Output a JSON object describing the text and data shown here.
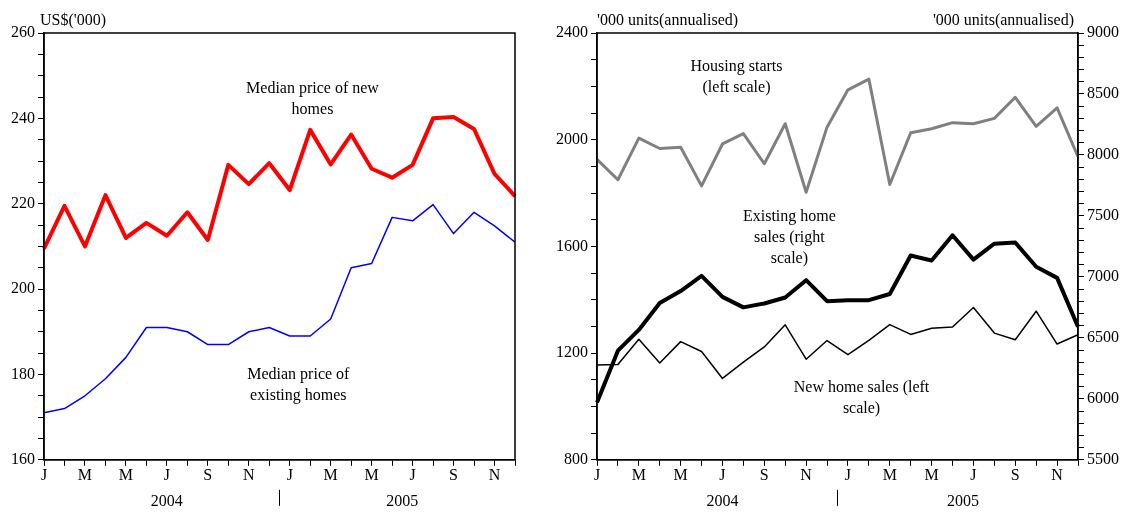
{
  "chart_data": [
    {
      "type": "line",
      "ylabel": "US$('000)",
      "categories": [
        "J",
        null,
        "M",
        null,
        "M",
        null,
        "J",
        null,
        "S",
        null,
        "N",
        null,
        "J",
        null,
        "M",
        null,
        "M",
        null,
        "J",
        null,
        "S",
        null,
        "N",
        null
      ],
      "series": [
        {
          "name": "Median price of new homes",
          "color": "#ff0000",
          "values": [
            209.5,
            219.5,
            210,
            222,
            212,
            215.5,
            212.5,
            218,
            211.5,
            229.1,
            224.6,
            229.5,
            223.2,
            237.3,
            229.2,
            236.2,
            228.2,
            226.1,
            229.1,
            240,
            240.3,
            237.5,
            227,
            221.8
          ]
        },
        {
          "name": "Median price of existing homes",
          "color": "#0000ff",
          "values": [
            171,
            172,
            175,
            179,
            184,
            191,
            191,
            190,
            187,
            187,
            190,
            191,
            189,
            189,
            193,
            205,
            206,
            216.8,
            216,
            219.8,
            213,
            218,
            214.8,
            211
          ]
        }
      ],
      "ylim": [
        160,
        260
      ],
      "yticks": [
        160,
        {
          "value": 165,
          "label": null
        },
        {
          "value": 170,
          "label": null
        },
        {
          "value": 175,
          "label": null
        },
        180,
        {
          "value": 185,
          "label": null
        },
        {
          "value": 190,
          "label": null
        },
        {
          "value": 195,
          "label": null
        },
        200,
        {
          "value": 205,
          "label": null
        },
        {
          "value": 210,
          "label": null
        },
        {
          "value": 215,
          "label": null
        },
        220,
        {
          "value": 225,
          "label": null
        },
        {
          "value": 230,
          "label": null
        },
        {
          "value": 235,
          "label": null
        },
        240,
        {
          "value": 245,
          "label": null
        },
        {
          "value": 250,
          "label": null
        },
        {
          "value": 255,
          "label": null
        },
        260
      ],
      "annotations": [
        "2004",
        "2005"
      ],
      "grid": false,
      "legend": false,
      "marker": "none",
      "line_style": "solid"
    },
    {
      "type": "line",
      "ylabel": "'000 units(annualised)",
      "y2label": "'000 units(annualised)",
      "categories": [
        "J",
        null,
        "M",
        null,
        "M",
        null,
        "J",
        null,
        "S",
        null,
        "N",
        null,
        "J",
        null,
        "M",
        null,
        "M",
        null,
        "J",
        null,
        "S",
        null,
        "N",
        null
      ],
      "series": [
        {
          "name": "Housing starts (left scale)",
          "color": "#808080",
          "values": [
            1926,
            1850,
            2006,
            1967,
            1972,
            1827,
            1984,
            2023,
            1910,
            2060,
            1803,
            2047,
            2187,
            2227,
            1832,
            2026,
            2041,
            2064,
            2060,
            2080,
            2159,
            2050,
            2119,
            1936
          ]
        },
        {
          "name": "Existing home sales (right scale)",
          "color": "#000000",
          "axis": "y2",
          "values": [
            5970,
            6395,
            6565,
            6785,
            6884,
            7008,
            6836,
            6750,
            6782,
            6831,
            6973,
            6801,
            6809,
            6809,
            6860,
            7175,
            7134,
            7341,
            7142,
            7272,
            7282,
            7083,
            6992,
            6591
          ]
        },
        {
          "name": "New home sales (left scale)",
          "color": "#000000",
          "values": [
            1155,
            1157,
            1252,
            1163,
            1243,
            1206,
            1105,
            1166,
            1223,
            1306,
            1177,
            1247,
            1194,
            1248,
            1307,
            1270,
            1293,
            1298,
            1371,
            1275,
            1250,
            1357,
            1234,
            1269
          ]
        }
      ],
      "ylim": [
        800,
        2400
      ],
      "yticks": [
        800,
        {
          "value": 900,
          "label": null
        },
        {
          "value": 1000,
          "label": null
        },
        {
          "value": 1100,
          "label": null
        },
        1200,
        {
          "value": 1300,
          "label": null
        },
        {
          "value": 1400,
          "label": null
        },
        {
          "value": 1500,
          "label": null
        },
        1600,
        {
          "value": 1700,
          "label": null
        },
        {
          "value": 1800,
          "label": null
        },
        {
          "value": 1900,
          "label": null
        },
        2000,
        {
          "value": 2100,
          "label": null
        },
        {
          "value": 2200,
          "label": null
        },
        {
          "value": 2300,
          "label": null
        },
        2400
      ],
      "y2lim": [
        5500,
        9000
      ],
      "y2ticks": [
        5500,
        {
          "value": 5600,
          "label": null
        },
        {
          "value": 5700,
          "label": null
        },
        {
          "value": 5800,
          "label": null
        },
        {
          "value": 5900,
          "label": null
        },
        6000,
        {
          "value": 6100,
          "label": null
        },
        {
          "value": 6200,
          "label": null
        },
        {
          "value": 6300,
          "label": null
        },
        {
          "value": 6400,
          "label": null
        },
        6500,
        {
          "value": 6600,
          "label": null
        },
        {
          "value": 6700,
          "label": null
        },
        {
          "value": 6800,
          "label": null
        },
        {
          "value": 6900,
          "label": null
        },
        7000,
        {
          "value": 7100,
          "label": null
        },
        {
          "value": 7200,
          "label": null
        },
        {
          "value": 7300,
          "label": null
        },
        {
          "value": 7400,
          "label": null
        },
        7500,
        {
          "value": 7600,
          "label": null
        },
        {
          "value": 7700,
          "label": null
        },
        {
          "value": 7800,
          "label": null
        },
        {
          "value": 7900,
          "label": null
        },
        8000,
        {
          "value": 8100,
          "label": null
        },
        {
          "value": 8200,
          "label": null
        },
        {
          "value": 8300,
          "label": null
        },
        {
          "value": 8400,
          "label": null
        },
        8500,
        {
          "value": 8600,
          "label": null
        },
        {
          "value": 8700,
          "label": null
        },
        {
          "value": 8800,
          "label": null
        },
        {
          "value": 8900,
          "label": null
        },
        9000
      ],
      "annotations": [
        "2004",
        "2005"
      ],
      "grid": false,
      "legend": false,
      "marker": "none",
      "line_style": "solid"
    }
  ]
}
